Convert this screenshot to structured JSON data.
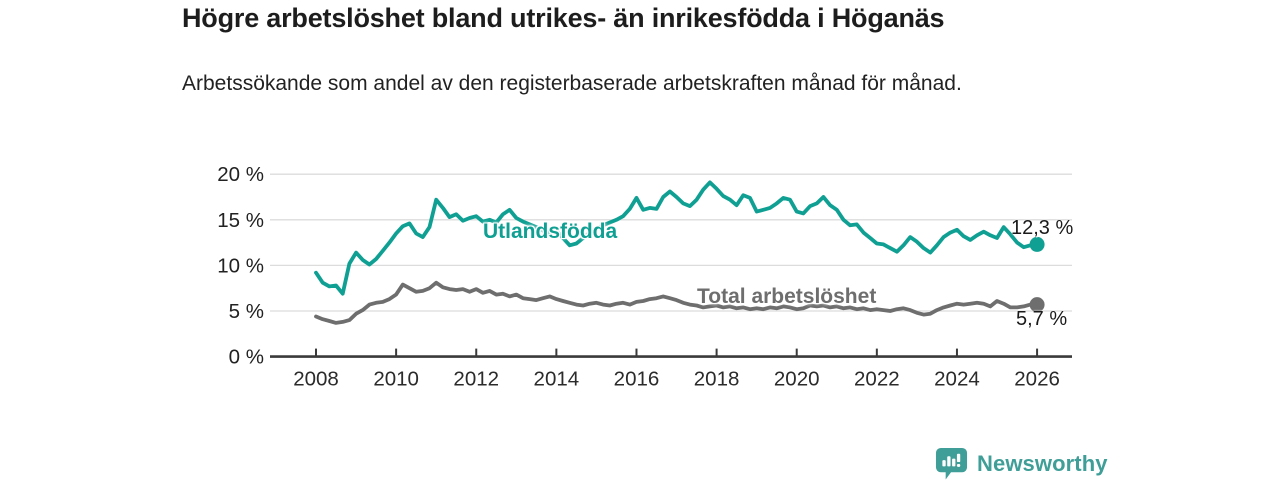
{
  "header": {
    "title": "Högre arbetslöshet bland utrikes- än inrikesfödda i Höganäs",
    "subtitle": "Arbetssökande som andel av den registerbaserade arbetskraften månad för månad."
  },
  "chart_data": {
    "type": "line",
    "title": "Högre arbetslöshet bland utrikes- än inrikesfödda i Höganäs",
    "xlabel": "",
    "ylabel": "",
    "x_start": 2008,
    "x_step_years": 0.166667,
    "x_end": 2026,
    "xlim": [
      2008,
      2026
    ],
    "ylim": [
      0,
      20
    ],
    "grid": "horizontal",
    "legend_position": "inline-labels",
    "x_ticks": [
      2008,
      2010,
      2012,
      2014,
      2016,
      2018,
      2020,
      2022,
      2024,
      2026
    ],
    "y_ticks": [
      {
        "value": 0,
        "label": "0 %"
      },
      {
        "value": 5,
        "label": "5 %"
      },
      {
        "value": 10,
        "label": "10 %"
      },
      {
        "value": 15,
        "label": "15 %"
      },
      {
        "value": 20,
        "label": "20 %"
      }
    ],
    "series": [
      {
        "name": "Total arbetslöshet",
        "color": "#6e6e6e",
        "end_label": "5,7 %",
        "end_value": 5.7,
        "values": [
          4.4,
          4.1,
          3.9,
          3.7,
          3.8,
          4.0,
          4.7,
          5.1,
          5.7,
          5.9,
          6.0,
          6.3,
          6.8,
          7.9,
          7.5,
          7.1,
          7.2,
          7.5,
          8.1,
          7.6,
          7.4,
          7.3,
          7.4,
          7.1,
          7.4,
          7.0,
          7.2,
          6.8,
          6.9,
          6.6,
          6.8,
          6.4,
          6.3,
          6.2,
          6.4,
          6.6,
          6.3,
          6.1,
          5.9,
          5.7,
          5.6,
          5.8,
          5.9,
          5.7,
          5.6,
          5.8,
          5.9,
          5.7,
          6.0,
          6.1,
          6.3,
          6.4,
          6.6,
          6.4,
          6.2,
          5.9,
          5.7,
          5.6,
          5.4,
          5.5,
          5.6,
          5.4,
          5.5,
          5.3,
          5.4,
          5.2,
          5.3,
          5.2,
          5.4,
          5.3,
          5.5,
          5.4,
          5.2,
          5.3,
          5.6,
          5.5,
          5.6,
          5.4,
          5.5,
          5.3,
          5.4,
          5.2,
          5.3,
          5.1,
          5.2,
          5.1,
          5.0,
          5.2,
          5.3,
          5.1,
          4.8,
          4.6,
          4.7,
          5.1,
          5.4,
          5.6,
          5.8,
          5.7,
          5.8,
          5.9,
          5.8,
          5.5,
          6.1,
          5.8,
          5.4,
          5.4,
          5.5,
          5.7,
          5.7
        ]
      },
      {
        "name": "Utlandsfödda",
        "color": "#0fa093",
        "end_label": "12,3 %",
        "end_value": 12.3,
        "values": [
          9.2,
          8.1,
          7.7,
          7.8,
          6.9,
          10.2,
          11.4,
          10.6,
          10.1,
          10.7,
          11.6,
          12.5,
          13.5,
          14.3,
          14.6,
          13.5,
          13.1,
          14.2,
          17.2,
          16.3,
          15.3,
          15.6,
          14.9,
          15.2,
          15.4,
          14.8,
          15.0,
          14.7,
          15.6,
          16.1,
          15.2,
          14.8,
          14.5,
          14.2,
          13.8,
          13.5,
          13.8,
          13.0,
          12.2,
          12.4,
          13.0,
          13.6,
          14.0,
          14.4,
          14.7,
          15.0,
          15.4,
          16.2,
          17.4,
          16.1,
          16.3,
          16.2,
          17.5,
          18.1,
          17.5,
          16.8,
          16.5,
          17.2,
          18.3,
          19.1,
          18.4,
          17.6,
          17.2,
          16.6,
          17.7,
          17.4,
          15.9,
          16.1,
          16.3,
          16.8,
          17.4,
          17.2,
          15.9,
          15.7,
          16.5,
          16.8,
          17.5,
          16.6,
          16.1,
          15.0,
          14.4,
          14.5,
          13.6,
          13.0,
          12.4,
          12.3,
          11.9,
          11.5,
          12.2,
          13.1,
          12.6,
          11.9,
          11.4,
          12.2,
          13.1,
          13.6,
          13.9,
          13.2,
          12.8,
          13.3,
          13.7,
          13.3,
          13.0,
          14.2,
          13.4,
          12.5,
          12.0,
          12.2,
          12.3
        ]
      }
    ]
  },
  "footer": {
    "brand": "Newsworthy",
    "brand_color": "#3f9e97",
    "logo_icon": "bar-chart-speech-bubble-icon"
  }
}
